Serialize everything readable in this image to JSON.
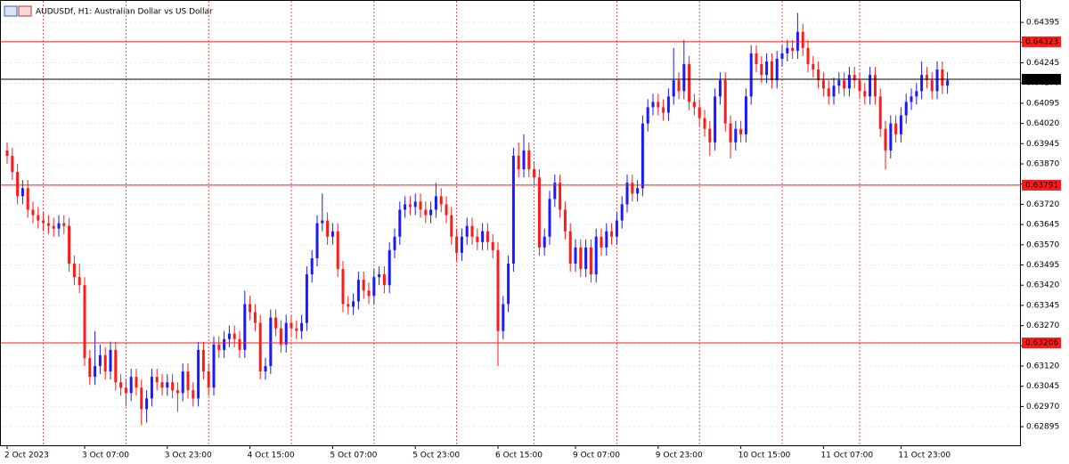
{
  "chart_data": {
    "type": "candlestick",
    "title": "AUDUSDf, H1:  Australian Dollar vs US Dollar",
    "bull_color": "#1a1aff",
    "bear_color": "#ff1a1a",
    "grid": true,
    "ylim": [
      0.62826,
      0.64478
    ],
    "yticks": [
      0.64395,
      {
        "value": 0.6432,
        "label": "0.64320"
      },
      0.64245,
      {
        "value": 0.6417,
        "label": "0.64170"
      },
      0.64095,
      {
        "value": 0.6402,
        "label": "0.64020"
      },
      0.63945,
      {
        "value": 0.6387,
        "label": "0.63870"
      },
      0.63795,
      {
        "value": 0.6372,
        "label": "0.63720"
      },
      0.63645,
      {
        "value": 0.6357,
        "label": "0.63570"
      },
      0.63495,
      {
        "value": 0.6342,
        "label": "0.63420"
      },
      0.63345,
      {
        "value": 0.6327,
        "label": "0.63270"
      },
      0.63195,
      {
        "value": 0.6312,
        "label": "0.63120"
      },
      0.63045,
      {
        "value": 0.6297,
        "label": "0.62970"
      },
      0.62895
    ],
    "hlines": [
      {
        "value": 0.64323,
        "color": "#ff1a1a"
      },
      {
        "value": 0.64184,
        "color": "#000000"
      },
      {
        "value": 0.63791,
        "color": "#ff1a1a"
      },
      {
        "value": 0.63206,
        "color": "#ff1a1a"
      }
    ],
    "labels": {
      "0": "2 Oct 2023",
      "15": "3 Oct 07:00",
      "31": "3 Oct 23:00",
      "47": "4 Oct 15:00",
      "63": "5 Oct 07:00",
      "79": "5 Oct 23:00",
      "95": "6 Oct 15:00",
      "110": "9 Oct 07:00",
      "126": "9 Oct 23:00",
      "142": "10 Oct 15:00",
      "158": "11 Oct 07:00",
      "173": "11 Oct 23:00"
    },
    "ohlc": [
      [
        0.6392,
        0.6395,
        0.6387,
        0.639
      ],
      [
        0.639,
        0.6393,
        0.6381,
        0.6384
      ],
      [
        0.6384,
        0.6387,
        0.6372,
        0.6375
      ],
      [
        0.6375,
        0.6381,
        0.6372,
        0.6378
      ],
      [
        0.6378,
        0.6381,
        0.6367,
        0.637
      ],
      [
        0.637,
        0.6373,
        0.6365,
        0.6368
      ],
      [
        0.6368,
        0.6371,
        0.6363,
        0.6366
      ],
      [
        0.6366,
        0.6369,
        0.6362,
        0.6365
      ],
      [
        0.6365,
        0.6368,
        0.6361,
        0.6364
      ],
      [
        0.6364,
        0.6367,
        0.636,
        0.6363
      ],
      [
        0.6363,
        0.6368,
        0.636,
        0.6365
      ],
      [
        0.6365,
        0.6368,
        0.6361,
        0.6364
      ],
      [
        0.6364,
        0.6367,
        0.6347,
        0.635
      ],
      [
        0.635,
        0.6353,
        0.6342,
        0.6345
      ],
      [
        0.6345,
        0.635,
        0.6339,
        0.6342
      ],
      [
        0.6342,
        0.6345,
        0.6312,
        0.6315
      ],
      [
        0.6315,
        0.6318,
        0.6305,
        0.6308
      ],
      [
        0.6308,
        0.6325,
        0.6305,
        0.6312
      ],
      [
        0.6312,
        0.632,
        0.6309,
        0.6316
      ],
      [
        0.6316,
        0.6319,
        0.6307,
        0.631
      ],
      [
        0.631,
        0.6321,
        0.6307,
        0.6318
      ],
      [
        0.6318,
        0.6321,
        0.6303,
        0.6306
      ],
      [
        0.6306,
        0.6309,
        0.6301,
        0.6304
      ],
      [
        0.6304,
        0.6307,
        0.6297,
        0.6302
      ],
      [
        0.6302,
        0.6311,
        0.6299,
        0.6308
      ],
      [
        0.6308,
        0.6311,
        0.6301,
        0.6304
      ],
      [
        0.6304,
        0.6307,
        0.629,
        0.6296
      ],
      [
        0.6296,
        0.6303,
        0.6291,
        0.63
      ],
      [
        0.63,
        0.6311,
        0.6297,
        0.6308
      ],
      [
        0.6308,
        0.6311,
        0.6303,
        0.6306
      ],
      [
        0.6306,
        0.6309,
        0.6301,
        0.6304
      ],
      [
        0.6304,
        0.6309,
        0.6301,
        0.6306
      ],
      [
        0.6306,
        0.6309,
        0.63,
        0.6303
      ],
      [
        0.6303,
        0.6306,
        0.6295,
        0.6302
      ],
      [
        0.6302,
        0.6313,
        0.6299,
        0.631
      ],
      [
        0.631,
        0.6313,
        0.63,
        0.6303
      ],
      [
        0.6303,
        0.6306,
        0.6297,
        0.63
      ],
      [
        0.63,
        0.6321,
        0.6297,
        0.6318
      ],
      [
        0.6318,
        0.6321,
        0.6307,
        0.631
      ],
      [
        0.631,
        0.6313,
        0.6301,
        0.6304
      ],
      [
        0.6304,
        0.6323,
        0.6301,
        0.632
      ],
      [
        0.632,
        0.6323,
        0.6315,
        0.6318
      ],
      [
        0.6318,
        0.6325,
        0.6315,
        0.6322
      ],
      [
        0.6322,
        0.6327,
        0.6319,
        0.6324
      ],
      [
        0.6324,
        0.6327,
        0.6319,
        0.6322
      ],
      [
        0.6322,
        0.6325,
        0.6315,
        0.6318
      ],
      [
        0.6318,
        0.634,
        0.6315,
        0.6335
      ],
      [
        0.6335,
        0.6338,
        0.6329,
        0.6332
      ],
      [
        0.6332,
        0.6335,
        0.6325,
        0.6328
      ],
      [
        0.6328,
        0.6331,
        0.6307,
        0.631
      ],
      [
        0.631,
        0.6315,
        0.6307,
        0.6312
      ],
      [
        0.6312,
        0.6333,
        0.6309,
        0.633
      ],
      [
        0.633,
        0.6333,
        0.6323,
        0.6326
      ],
      [
        0.6326,
        0.6329,
        0.6317,
        0.632
      ],
      [
        0.632,
        0.6331,
        0.6317,
        0.6328
      ],
      [
        0.6328,
        0.6331,
        0.6323,
        0.6326
      ],
      [
        0.6326,
        0.6329,
        0.6322,
        0.6325
      ],
      [
        0.6325,
        0.6331,
        0.6322,
        0.6328
      ],
      [
        0.6328,
        0.6349,
        0.6325,
        0.6346
      ],
      [
        0.6346,
        0.6355,
        0.6343,
        0.6352
      ],
      [
        0.6352,
        0.6368,
        0.6349,
        0.6365
      ],
      [
        0.6365,
        0.6376,
        0.6362,
        0.6366
      ],
      [
        0.6366,
        0.6369,
        0.6357,
        0.636
      ],
      [
        0.636,
        0.6365,
        0.6357,
        0.6362
      ],
      [
        0.6362,
        0.6365,
        0.6345,
        0.6348
      ],
      [
        0.6348,
        0.6351,
        0.6332,
        0.6335
      ],
      [
        0.6335,
        0.6338,
        0.6331,
        0.6334
      ],
      [
        0.6334,
        0.6339,
        0.6331,
        0.6336
      ],
      [
        0.6336,
        0.6347,
        0.6333,
        0.6344
      ],
      [
        0.6344,
        0.6347,
        0.6337,
        0.634
      ],
      [
        0.634,
        0.6343,
        0.6335,
        0.6338
      ],
      [
        0.6338,
        0.6348,
        0.6335,
        0.6345
      ],
      [
        0.6345,
        0.6349,
        0.6342,
        0.6346
      ],
      [
        0.6346,
        0.6349,
        0.6339,
        0.6342
      ],
      [
        0.6342,
        0.6358,
        0.6339,
        0.6355
      ],
      [
        0.6355,
        0.6363,
        0.6352,
        0.636
      ],
      [
        0.636,
        0.6373,
        0.6357,
        0.637
      ],
      [
        0.637,
        0.6375,
        0.6367,
        0.6372
      ],
      [
        0.6372,
        0.6375,
        0.6368,
        0.6371
      ],
      [
        0.6371,
        0.6376,
        0.6368,
        0.6373
      ],
      [
        0.6373,
        0.6376,
        0.6367,
        0.637
      ],
      [
        0.637,
        0.6373,
        0.6365,
        0.6368
      ],
      [
        0.6368,
        0.6373,
        0.6365,
        0.637
      ],
      [
        0.637,
        0.638,
        0.6367,
        0.6375
      ],
      [
        0.6375,
        0.6378,
        0.6369,
        0.6372
      ],
      [
        0.6372,
        0.6375,
        0.6365,
        0.6368
      ],
      [
        0.6368,
        0.6371,
        0.6357,
        0.636
      ],
      [
        0.636,
        0.6363,
        0.6351,
        0.6354
      ],
      [
        0.6354,
        0.6363,
        0.6351,
        0.636
      ],
      [
        0.636,
        0.6367,
        0.6357,
        0.6364
      ],
      [
        0.6364,
        0.6367,
        0.6357,
        0.636
      ],
      [
        0.636,
        0.6363,
        0.6355,
        0.6358
      ],
      [
        0.6358,
        0.6365,
        0.6355,
        0.6362
      ],
      [
        0.6362,
        0.6365,
        0.6355,
        0.6358
      ],
      [
        0.6358,
        0.6361,
        0.6352,
        0.6355
      ],
      [
        0.6355,
        0.6358,
        0.6312,
        0.6325
      ],
      [
        0.6325,
        0.6338,
        0.6322,
        0.6335
      ],
      [
        0.6335,
        0.6353,
        0.6332,
        0.635
      ],
      [
        0.635,
        0.6393,
        0.6347,
        0.639
      ],
      [
        0.639,
        0.6395,
        0.6382,
        0.6385
      ],
      [
        0.6385,
        0.6398,
        0.6382,
        0.6392
      ],
      [
        0.6392,
        0.6395,
        0.6382,
        0.6385
      ],
      [
        0.6385,
        0.6388,
        0.6379,
        0.6382
      ],
      [
        0.6382,
        0.6385,
        0.6353,
        0.6356
      ],
      [
        0.6356,
        0.6363,
        0.6353,
        0.636
      ],
      [
        0.636,
        0.6377,
        0.6357,
        0.6374
      ],
      [
        0.6374,
        0.6383,
        0.6371,
        0.638
      ],
      [
        0.638,
        0.6383,
        0.6367,
        0.637
      ],
      [
        0.637,
        0.6373,
        0.6359,
        0.6362
      ],
      [
        0.6362,
        0.6365,
        0.6347,
        0.635
      ],
      [
        0.635,
        0.6359,
        0.6347,
        0.6356
      ],
      [
        0.6356,
        0.6359,
        0.6345,
        0.6348
      ],
      [
        0.6348,
        0.6359,
        0.6345,
        0.6356
      ],
      [
        0.6356,
        0.6359,
        0.6343,
        0.6346
      ],
      [
        0.6346,
        0.6363,
        0.6343,
        0.636
      ],
      [
        0.636,
        0.6363,
        0.6353,
        0.6356
      ],
      [
        0.6356,
        0.6365,
        0.6353,
        0.6362
      ],
      [
        0.6362,
        0.6365,
        0.6357,
        0.636
      ],
      [
        0.636,
        0.6369,
        0.6357,
        0.6366
      ],
      [
        0.6366,
        0.6375,
        0.6363,
        0.6372
      ],
      [
        0.6372,
        0.6383,
        0.6369,
        0.638
      ],
      [
        0.638,
        0.6383,
        0.6373,
        0.6376
      ],
      [
        0.6376,
        0.6381,
        0.6373,
        0.6378
      ],
      [
        0.6378,
        0.6405,
        0.6375,
        0.6402
      ],
      [
        0.6402,
        0.6411,
        0.6399,
        0.6408
      ],
      [
        0.6408,
        0.6413,
        0.6405,
        0.641
      ],
      [
        0.641,
        0.6413,
        0.6405,
        0.6408
      ],
      [
        0.6408,
        0.6411,
        0.6403,
        0.6406
      ],
      [
        0.6406,
        0.6415,
        0.6403,
        0.6412
      ],
      [
        0.6412,
        0.643,
        0.6409,
        0.6418
      ],
      [
        0.6418,
        0.6421,
        0.6411,
        0.6414
      ],
      [
        0.6414,
        0.6433,
        0.6411,
        0.6424
      ],
      [
        0.6424,
        0.6427,
        0.6407,
        0.641
      ],
      [
        0.641,
        0.6413,
        0.6405,
        0.6408
      ],
      [
        0.6408,
        0.6411,
        0.6401,
        0.6404
      ],
      [
        0.6404,
        0.6407,
        0.6397,
        0.64
      ],
      [
        0.64,
        0.6403,
        0.639,
        0.6395
      ],
      [
        0.6395,
        0.6415,
        0.6392,
        0.6412
      ],
      [
        0.6412,
        0.6421,
        0.6409,
        0.6418
      ],
      [
        0.6418,
        0.6421,
        0.6399,
        0.6402
      ],
      [
        0.6402,
        0.6405,
        0.6389,
        0.6395
      ],
      [
        0.6395,
        0.6403,
        0.6392,
        0.64
      ],
      [
        0.64,
        0.6403,
        0.6395,
        0.6398
      ],
      [
        0.6398,
        0.6415,
        0.6395,
        0.6412
      ],
      [
        0.6412,
        0.6431,
        0.6409,
        0.6428
      ],
      [
        0.6428,
        0.6431,
        0.6421,
        0.6424
      ],
      [
        0.6424,
        0.6427,
        0.6417,
        0.642
      ],
      [
        0.642,
        0.6428,
        0.6417,
        0.6425
      ],
      [
        0.6425,
        0.6428,
        0.6415,
        0.6418
      ],
      [
        0.6418,
        0.6429,
        0.6415,
        0.6426
      ],
      [
        0.6426,
        0.6431,
        0.6423,
        0.6428
      ],
      [
        0.6428,
        0.6433,
        0.6425,
        0.643
      ],
      [
        0.643,
        0.6433,
        0.6426,
        0.6429
      ],
      [
        0.6429,
        0.6443,
        0.6426,
        0.6436
      ],
      [
        0.6436,
        0.6439,
        0.6427,
        0.643
      ],
      [
        0.643,
        0.6433,
        0.6421,
        0.6424
      ],
      [
        0.6424,
        0.6427,
        0.6419,
        0.6422
      ],
      [
        0.6422,
        0.6425,
        0.6415,
        0.6418
      ],
      [
        0.6418,
        0.6421,
        0.6412,
        0.6415
      ],
      [
        0.6415,
        0.6418,
        0.6409,
        0.6412
      ],
      [
        0.6412,
        0.6419,
        0.6409,
        0.6416
      ],
      [
        0.6416,
        0.6421,
        0.6413,
        0.6418
      ],
      [
        0.6418,
        0.6421,
        0.6412,
        0.6415
      ],
      [
        0.6415,
        0.6423,
        0.6412,
        0.642
      ],
      [
        0.642,
        0.6423,
        0.6415,
        0.6418
      ],
      [
        0.6418,
        0.6421,
        0.6411,
        0.6414
      ],
      [
        0.6414,
        0.6417,
        0.6409,
        0.6412
      ],
      [
        0.6412,
        0.6423,
        0.6409,
        0.642
      ],
      [
        0.642,
        0.6423,
        0.6409,
        0.6412
      ],
      [
        0.6412,
        0.6415,
        0.6397,
        0.64
      ],
      [
        0.64,
        0.6403,
        0.6385,
        0.6392
      ],
      [
        0.6392,
        0.6405,
        0.6389,
        0.6402
      ],
      [
        0.6402,
        0.6405,
        0.6395,
        0.6398
      ],
      [
        0.6398,
        0.6408,
        0.6395,
        0.6405
      ],
      [
        0.6405,
        0.6413,
        0.6402,
        0.641
      ],
      [
        0.641,
        0.6415,
        0.6407,
        0.6412
      ],
      [
        0.6412,
        0.6417,
        0.6409,
        0.6414
      ],
      [
        0.6414,
        0.6425,
        0.6411,
        0.642
      ],
      [
        0.642,
        0.6423,
        0.6415,
        0.6418
      ],
      [
        0.6418,
        0.6421,
        0.6411,
        0.6414
      ],
      [
        0.6414,
        0.6425,
        0.6411,
        0.6422
      ],
      [
        0.6422,
        0.6425,
        0.6413,
        0.6416
      ],
      [
        0.6416,
        0.6421,
        0.6413,
        0.6418
      ]
    ]
  }
}
